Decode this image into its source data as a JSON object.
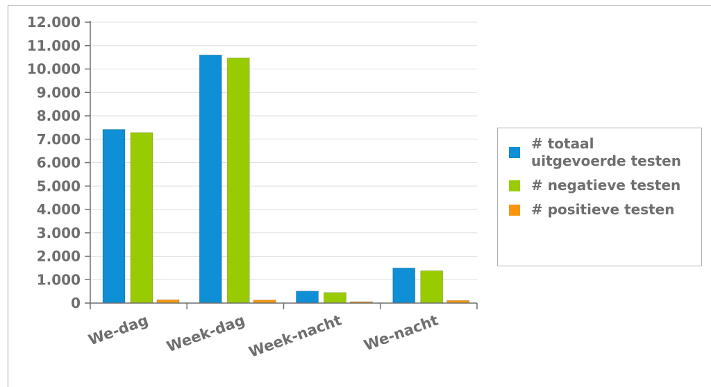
{
  "chart_data": {
    "type": "bar",
    "categories": [
      "We-dag",
      "Week-dag",
      "Week-nacht",
      "We-nacht"
    ],
    "series": [
      {
        "name": "# totaal uitgevoerde testen",
        "color": "#0e8fd6",
        "values": [
          7420,
          10600,
          510,
          1500
        ]
      },
      {
        "name": "# negatieve testen",
        "color": "#99cc00",
        "values": [
          7280,
          10470,
          450,
          1380
        ]
      },
      {
        "name": "# positieve testen",
        "color": "#f7960e",
        "values": [
          140,
          130,
          60,
          110
        ]
      }
    ],
    "ylim": [
      0,
      12000
    ],
    "yticks": [
      0,
      1000,
      2000,
      3000,
      4000,
      5000,
      6000,
      7000,
      8000,
      9000,
      10000,
      11000,
      12000
    ],
    "ytick_labels": [
      "0",
      "1.000",
      "2.000",
      "3.000",
      "4.000",
      "5.000",
      "6.000",
      "7.000",
      "8.000",
      "9.000",
      "10.000",
      "11.000",
      "12.000"
    ],
    "grid": true,
    "legend_position": "right",
    "title": "",
    "xlabel": "",
    "ylabel": ""
  }
}
